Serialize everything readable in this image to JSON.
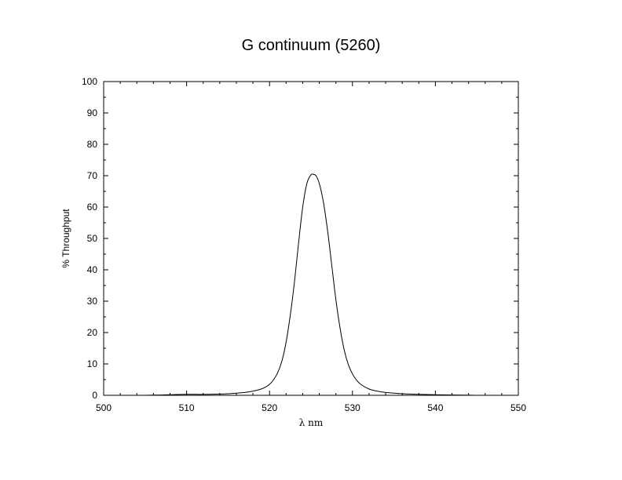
{
  "chart_data": {
    "type": "line",
    "title": "G continuum (5260)",
    "xlabel": "λ nm",
    "ylabel": "% Throughput",
    "xlim": [
      500,
      550
    ],
    "ylim": [
      0,
      100
    ],
    "x_ticks": [
      500,
      510,
      520,
      530,
      540,
      550
    ],
    "y_ticks": [
      0,
      10,
      20,
      30,
      40,
      50,
      60,
      70,
      80,
      90,
      100
    ],
    "grid": false,
    "series": [
      {
        "color": "#000000",
        "x": [
          505.0,
          507.0,
          508.0,
          510.0,
          512.0,
          514.0,
          515.0,
          516.0,
          517.0,
          518.0,
          519.0,
          519.5,
          520.0,
          520.5,
          521.0,
          521.5,
          522.0,
          522.5,
          523.0,
          523.5,
          524.0,
          524.5,
          525.0,
          525.3,
          525.6,
          526.0,
          526.5,
          527.0,
          527.5,
          528.0,
          528.5,
          529.0,
          529.5,
          530.0,
          530.5,
          531.0,
          532.0,
          533.0,
          534.0,
          535.0,
          536.0,
          538.0,
          540.0,
          542.0,
          545.0
        ],
        "y": [
          0.0,
          0.1,
          0.2,
          0.3,
          0.3,
          0.4,
          0.5,
          0.7,
          0.9,
          1.3,
          2.0,
          2.6,
          3.5,
          5.0,
          7.3,
          11.0,
          17.0,
          25.5,
          36.0,
          48.5,
          60.0,
          67.5,
          70.3,
          70.4,
          70.0,
          67.5,
          61.5,
          52.5,
          41.5,
          30.5,
          21.5,
          14.5,
          9.8,
          6.8,
          4.8,
          3.5,
          2.0,
          1.3,
          0.9,
          0.7,
          0.5,
          0.3,
          0.2,
          0.1,
          0.0
        ]
      }
    ]
  }
}
